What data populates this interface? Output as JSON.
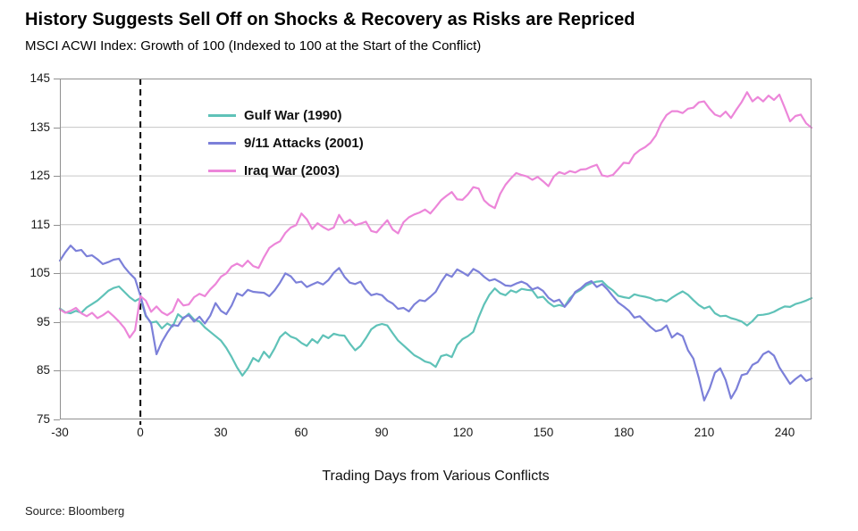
{
  "header": {
    "title": "History Suggests Sell Off on Shocks & Recovery as Risks are Repriced",
    "subtitle": "MSCI ACWI Index: Growth of 100 (Indexed to 100 at the Start of the Conflict)"
  },
  "footer": {
    "source": "Source: Bloomberg"
  },
  "chart_data": {
    "type": "line",
    "title": "History Suggests Sell Off on Shocks & Recovery as Risks are Repriced",
    "subtitle": "MSCI ACWI Index: Growth of 100 (Indexed to 100 at the Start of the Conflict)",
    "xlabel": "Trading Days from Various Conflicts",
    "ylabel": "",
    "xlim": [
      -30,
      250
    ],
    "ylim": [
      75,
      145
    ],
    "xticks": [
      -30,
      0,
      30,
      60,
      90,
      120,
      150,
      180,
      210,
      240
    ],
    "yticks": [
      75,
      85,
      95,
      105,
      115,
      125,
      135,
      145
    ],
    "grid": "horizontal",
    "event_line": {
      "x": 0,
      "style": "dashed",
      "color": "#000000"
    },
    "legend_position": "inside-top-left",
    "colors": {
      "grid": "#c6c6c6",
      "border": "#909090",
      "accent_dash": "#000000"
    },
    "x_start": -30,
    "x_step": 2,
    "series": [
      {
        "name": "Gulf War (1990)",
        "color": "#5fc2b8",
        "values": [
          97.8,
          97.0,
          96.8,
          97.3,
          96.9,
          98.0,
          98.7,
          99.4,
          100.4,
          101.4,
          102.0,
          102.3,
          101.2,
          100.1,
          99.3,
          99.9,
          96.2,
          94.9,
          95.1,
          93.7,
          94.7,
          94.1,
          96.6,
          95.7,
          96.7,
          95.5,
          95.1,
          93.9,
          93.0,
          92.1,
          91.2,
          89.7,
          87.8,
          85.7,
          84.0,
          85.5,
          87.6,
          86.9,
          88.9,
          87.7,
          89.6,
          91.9,
          92.9,
          92.0,
          91.6,
          90.7,
          90.1,
          91.5,
          90.7,
          92.3,
          91.7,
          92.6,
          92.3,
          92.2,
          90.6,
          89.2,
          90.1,
          91.7,
          93.5,
          94.3,
          94.6,
          94.3,
          92.7,
          91.2,
          90.2,
          89.2,
          88.2,
          87.6,
          86.9,
          86.6,
          85.8,
          88.0,
          88.3,
          87.8,
          90.3,
          91.5,
          92.1,
          93.0,
          96.0,
          98.6,
          100.6,
          101.9,
          100.9,
          100.5,
          101.5,
          101.1,
          101.8,
          101.6,
          101.5,
          100.0,
          100.2,
          99.0,
          98.2,
          98.5,
          98.2,
          99.9,
          101.0,
          101.6,
          102.5,
          103.0,
          103.3,
          103.4,
          102.3,
          101.5,
          100.4,
          100.1,
          99.9,
          100.7,
          100.4,
          100.2,
          99.9,
          99.4,
          99.6,
          99.2,
          100.0,
          100.7,
          101.3,
          100.6,
          99.5,
          98.5,
          97.8,
          98.2,
          96.8,
          96.2,
          96.3,
          95.8,
          95.5,
          95.1,
          94.3,
          95.2,
          96.4,
          96.5,
          96.7,
          97.1,
          97.7,
          98.2,
          98.1,
          98.7,
          99.0,
          99.4,
          99.9
        ]
      },
      {
        "name": "9/11 Attacks (2001)",
        "color": "#7c80d9",
        "values": [
          107.6,
          109.3,
          110.7,
          109.6,
          109.8,
          108.5,
          108.7,
          107.9,
          106.9,
          107.3,
          107.8,
          108.0,
          106.3,
          105.0,
          103.9,
          100.4,
          96.4,
          94.7,
          88.4,
          90.9,
          92.8,
          94.4,
          94.2,
          95.9,
          96.4,
          95.1,
          96.1,
          94.7,
          96.3,
          98.9,
          97.3,
          96.6,
          98.4,
          100.9,
          100.4,
          101.6,
          101.2,
          101.1,
          101.0,
          100.3,
          101.5,
          103.1,
          105.0,
          104.4,
          103.1,
          103.3,
          102.2,
          102.7,
          103.2,
          102.7,
          103.6,
          105.1,
          106.1,
          104.3,
          103.1,
          102.8,
          103.3,
          101.6,
          100.5,
          100.8,
          100.5,
          99.4,
          98.8,
          97.7,
          97.9,
          97.2,
          98.6,
          99.5,
          99.3,
          100.2,
          101.2,
          103.2,
          104.8,
          104.3,
          105.8,
          105.2,
          104.5,
          105.9,
          105.3,
          104.3,
          103.5,
          103.8,
          103.2,
          102.5,
          102.4,
          102.9,
          103.3,
          102.8,
          101.7,
          102.1,
          101.4,
          100.0,
          99.2,
          99.6,
          98.1,
          99.4,
          101.2,
          101.9,
          102.9,
          103.4,
          102.2,
          102.8,
          101.7,
          100.3,
          99.0,
          98.2,
          97.3,
          95.9,
          96.2,
          95.1,
          94.0,
          93.1,
          93.4,
          94.3,
          91.8,
          92.7,
          92.1,
          89.2,
          87.5,
          83.5,
          78.9,
          81.3,
          84.6,
          85.5,
          83.1,
          79.3,
          81.2,
          84.1,
          84.4,
          86.2,
          86.8,
          88.4,
          89.0,
          88.1,
          85.7,
          84.0,
          82.3,
          83.3,
          84.1,
          82.9,
          83.4
        ]
      },
      {
        "name": "Iraq War (2003)",
        "color": "#ec86d9",
        "values": [
          97.6,
          96.9,
          97.3,
          97.9,
          96.8,
          96.2,
          96.9,
          95.8,
          96.4,
          97.2,
          96.2,
          95.1,
          93.8,
          91.8,
          93.3,
          100.3,
          99.4,
          97.1,
          98.2,
          97.0,
          96.4,
          97.2,
          99.7,
          98.4,
          98.6,
          100.1,
          100.8,
          100.3,
          101.7,
          102.8,
          104.3,
          105.0,
          106.4,
          107.0,
          106.4,
          107.6,
          106.5,
          106.1,
          108.3,
          110.2,
          111.0,
          111.6,
          113.3,
          114.4,
          114.9,
          117.3,
          116.1,
          114.1,
          115.3,
          114.5,
          113.9,
          114.4,
          117.0,
          115.3,
          116.0,
          114.9,
          115.2,
          115.6,
          113.7,
          113.4,
          114.7,
          115.9,
          114.0,
          113.2,
          115.5,
          116.5,
          117.1,
          117.5,
          118.1,
          117.3,
          118.6,
          120.0,
          120.9,
          121.7,
          120.2,
          120.1,
          121.2,
          122.7,
          122.4,
          120.0,
          119.0,
          118.4,
          121.3,
          123.2,
          124.5,
          125.6,
          125.2,
          124.9,
          124.2,
          124.8,
          123.9,
          122.9,
          124.9,
          125.8,
          125.4,
          126.0,
          125.7,
          126.3,
          126.4,
          126.9,
          127.3,
          125.1,
          124.9,
          125.2,
          126.4,
          127.7,
          127.6,
          129.4,
          130.3,
          130.9,
          131.8,
          133.3,
          135.8,
          137.5,
          138.3,
          138.3,
          137.9,
          138.8,
          139.0,
          140.1,
          140.3,
          138.8,
          137.6,
          137.2,
          138.2,
          136.9,
          138.6,
          140.2,
          142.2,
          140.3,
          141.2,
          140.3,
          141.5,
          140.6,
          141.7,
          139.0,
          136.2,
          137.3,
          137.6,
          135.8,
          134.9
        ]
      }
    ]
  }
}
